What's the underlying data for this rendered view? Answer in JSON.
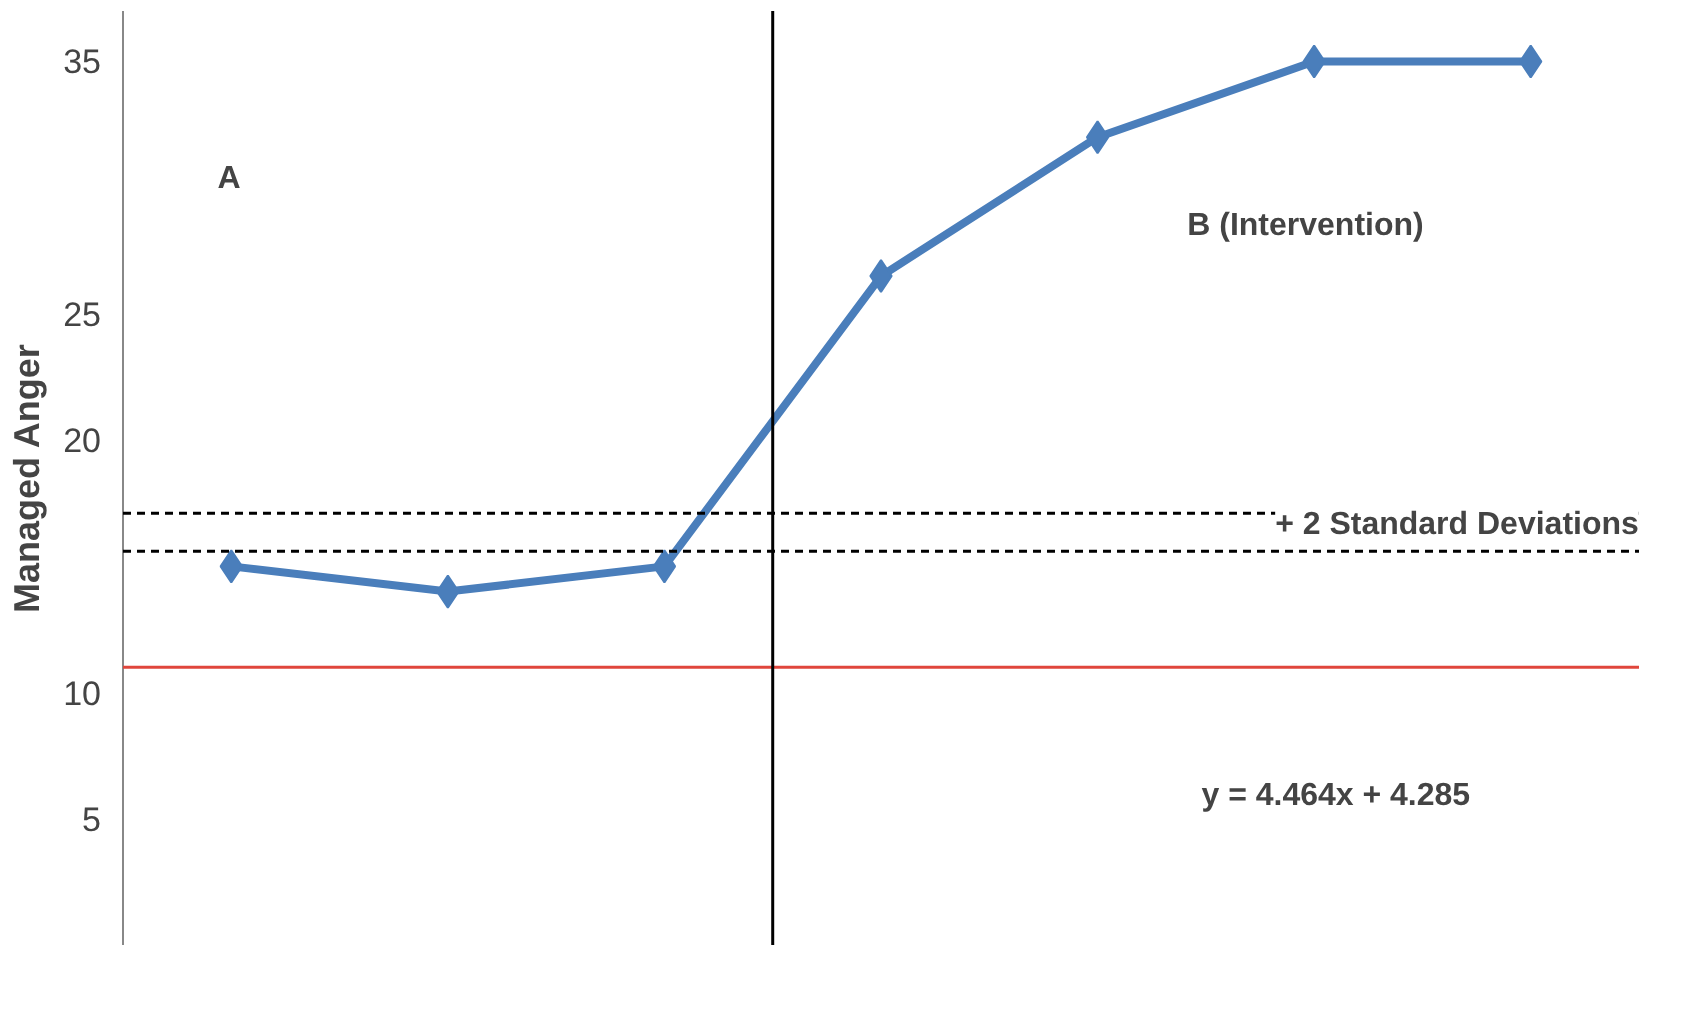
{
  "chart_data": {
    "type": "line",
    "ylabel": "Managed Anger",
    "categories": [
      null,
      null,
      null,
      null,
      null,
      null,
      null
    ],
    "ylim": [
      0,
      37
    ],
    "yticks": [
      5,
      10,
      20,
      25,
      35
    ],
    "tick_labels": "y",
    "grid": false,
    "marker": "diamond",
    "line_style": "solid",
    "series": [
      {
        "color": "#4a7ebb",
        "values": [
          15,
          14,
          15,
          26.5,
          32,
          35,
          35
        ]
      }
    ],
    "ref_lines": [
      {
        "axis": "y",
        "value": 17.1,
        "color": "#000000",
        "line_style": "dashed"
      },
      {
        "axis": "y",
        "value": 15.6,
        "color": "#000000",
        "line_style": "dashed"
      },
      {
        "axis": "y",
        "value": 11,
        "color": "#e0463c",
        "line_style": "solid"
      }
    ],
    "annotations": [
      "A",
      "B (Intervention)",
      "+ 2 Standard Deviations",
      "y = 4.464x + 4.285"
    ]
  }
}
